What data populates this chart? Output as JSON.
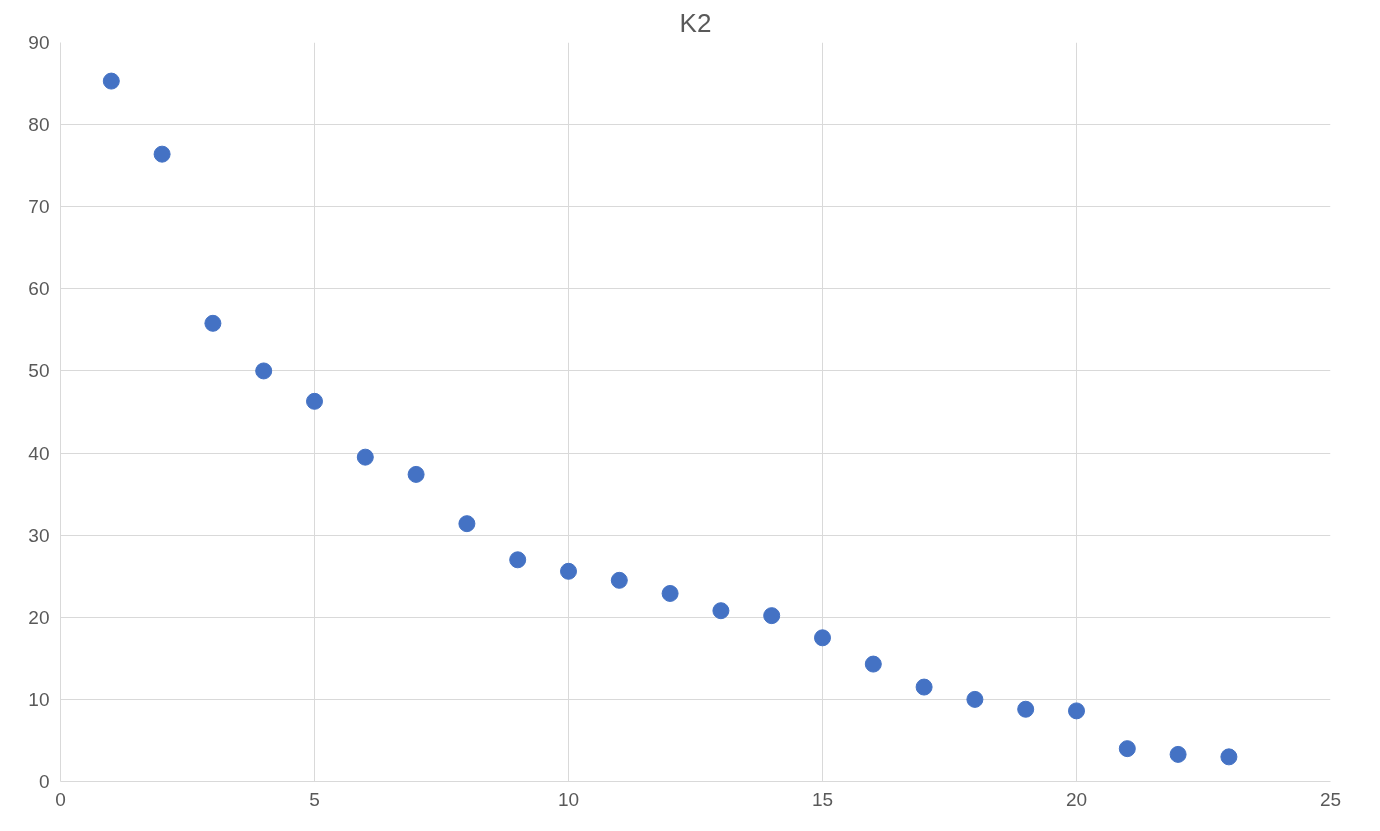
{
  "chart_data": {
    "type": "scatter",
    "title": "K2",
    "x": [
      1,
      2,
      3,
      4,
      5,
      6,
      7,
      8,
      9,
      10,
      11,
      12,
      13,
      14,
      15,
      16,
      17,
      18,
      19,
      20,
      21,
      22,
      23
    ],
    "series": [
      {
        "color": "#4472c4",
        "values": [
          85.3,
          76.4,
          55.8,
          50.0,
          46.3,
          39.5,
          37.4,
          31.4,
          27.0,
          25.6,
          24.5,
          22.9,
          20.8,
          20.2,
          17.5,
          14.3,
          11.5,
          10.0,
          8.8,
          8.6,
          4.0,
          3.3,
          3.0
        ]
      }
    ],
    "xlim": [
      0,
      25
    ],
    "xticks": [
      0,
      5,
      10,
      15,
      20,
      25
    ],
    "ylim": [
      0,
      90
    ],
    "yticks": [
      0,
      10,
      20,
      30,
      40,
      50,
      60,
      70,
      80,
      90
    ],
    "grid": true,
    "marker": "circle"
  }
}
